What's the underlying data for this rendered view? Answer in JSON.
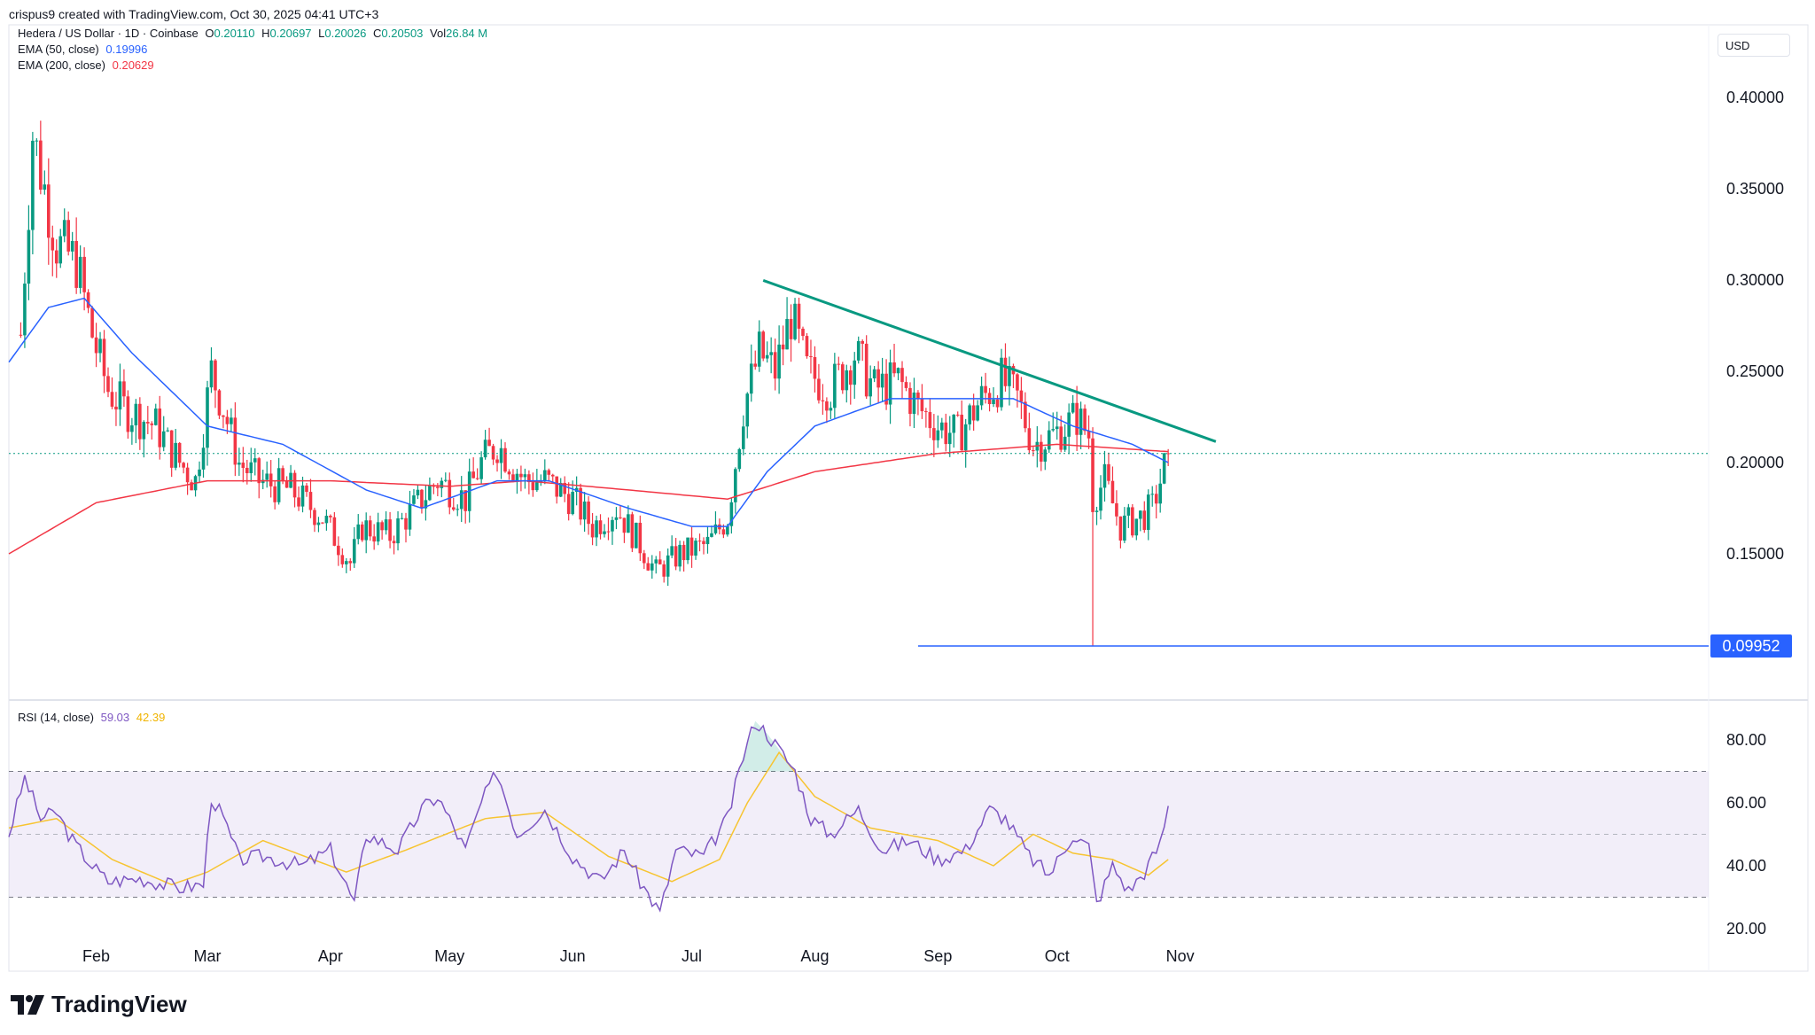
{
  "attribution": "crispus9 created with TradingView.com, Oct 30, 2025 04:41 UTC+3",
  "symbol": {
    "name": "Hedera / US Dollar · 1D · Coinbase",
    "o_label": "O",
    "o_value": "0.20110",
    "h_label": "H",
    "h_value": "0.20697",
    "l_label": "L",
    "l_value": "0.20026",
    "c_label": "C",
    "c_value": "0.20503",
    "vol_label": "Vol",
    "vol_value": "26.84 M"
  },
  "ema50": {
    "label": "EMA (50, close)",
    "value": "0.19996",
    "color": "#2962ff"
  },
  "ema200": {
    "label": "EMA (200, close)",
    "value": "0.20629",
    "color": "#f23645"
  },
  "rsi": {
    "label": "RSI (14, close)",
    "value": "59.03",
    "ma_value": "42.39",
    "color": "#7e57c2",
    "ma_color": "#f7c431"
  },
  "currency": "USD",
  "last_price_line": 0.205,
  "marked_low_label": "0.09952",
  "brand": "TradingView",
  "colors": {
    "up": "#089981",
    "down": "#f23645",
    "trendline": "#089981",
    "band": "#7e57c2"
  },
  "chart_data": [
    {
      "type": "candlestick",
      "title": "Hedera / US Dollar · 1D · Coinbase",
      "ylim": [
        0.07,
        0.45
      ],
      "y_ticks": [
        "0.40000",
        "0.35000",
        "0.30000",
        "0.25000",
        "0.20000",
        "0.15000"
      ],
      "x_ticks": [
        "Feb",
        "Mar",
        "Apr",
        "May",
        "Jun",
        "Jul",
        "Aug",
        "Sep",
        "Oct",
        "Nov"
      ],
      "price_anchors": [
        [
          "2025-01-13",
          0.27
        ],
        [
          "2025-01-16",
          0.38
        ],
        [
          "2025-01-19",
          0.35
        ],
        [
          "2025-01-22",
          0.32
        ],
        [
          "2025-01-27",
          0.31
        ],
        [
          "2025-01-31",
          0.27
        ],
        [
          "2025-02-04",
          0.24
        ],
        [
          "2025-02-08",
          0.23
        ],
        [
          "2025-02-16",
          0.22
        ],
        [
          "2025-02-22",
          0.2
        ],
        [
          "2025-02-26",
          0.19
        ],
        [
          "2025-03-02",
          0.25
        ],
        [
          "2025-03-05",
          0.23
        ],
        [
          "2025-03-09",
          0.2
        ],
        [
          "2025-03-14",
          0.19
        ],
        [
          "2025-03-22",
          0.185
        ],
        [
          "2025-03-30",
          0.17
        ],
        [
          "2025-04-06",
          0.145
        ],
        [
          "2025-04-09",
          0.165
        ],
        [
          "2025-04-16",
          0.16
        ],
        [
          "2025-04-24",
          0.18
        ],
        [
          "2025-04-28",
          0.19
        ],
        [
          "2025-05-05",
          0.18
        ],
        [
          "2025-05-09",
          0.2
        ],
        [
          "2025-05-13",
          0.21
        ],
        [
          "2025-05-20",
          0.19
        ],
        [
          "2025-05-25",
          0.19
        ],
        [
          "2025-06-01",
          0.18
        ],
        [
          "2025-06-06",
          0.165
        ],
        [
          "2025-06-12",
          0.175
        ],
        [
          "2025-06-18",
          0.155
        ],
        [
          "2025-06-22",
          0.14
        ],
        [
          "2025-06-28",
          0.15
        ],
        [
          "2025-07-05",
          0.155
        ],
        [
          "2025-07-10",
          0.17
        ],
        [
          "2025-07-14",
          0.23
        ],
        [
          "2025-07-18",
          0.26
        ],
        [
          "2025-07-22",
          0.25
        ],
        [
          "2025-07-26",
          0.28
        ],
        [
          "2025-07-30",
          0.25
        ],
        [
          "2025-08-05",
          0.24
        ],
        [
          "2025-08-11",
          0.26
        ],
        [
          "2025-08-16",
          0.24
        ],
        [
          "2025-08-22",
          0.245
        ],
        [
          "2025-08-27",
          0.23
        ],
        [
          "2025-09-01",
          0.22
        ],
        [
          "2025-09-06",
          0.215
        ],
        [
          "2025-09-12",
          0.235
        ],
        [
          "2025-09-17",
          0.245
        ],
        [
          "2025-09-21",
          0.235
        ],
        [
          "2025-09-25",
          0.21
        ],
        [
          "2025-09-30",
          0.215
        ],
        [
          "2025-10-06",
          0.225
        ],
        [
          "2025-10-09",
          0.215
        ],
        [
          "2025-10-10",
          0.18
        ],
        [
          "2025-10-13",
          0.19
        ],
        [
          "2025-10-17",
          0.165
        ],
        [
          "2025-10-22",
          0.17
        ],
        [
          "2025-10-25",
          0.175
        ],
        [
          "2025-10-29",
          0.205
        ]
      ],
      "ema50_anchors": [
        [
          "2025-01-10",
          0.255
        ],
        [
          "2025-01-20",
          0.285
        ],
        [
          "2025-01-29",
          0.29
        ],
        [
          "2025-02-10",
          0.26
        ],
        [
          "2025-03-01",
          0.22
        ],
        [
          "2025-03-20",
          0.21
        ],
        [
          "2025-04-10",
          0.185
        ],
        [
          "2025-04-24",
          0.175
        ],
        [
          "2025-05-13",
          0.19
        ],
        [
          "2025-05-26",
          0.19
        ],
        [
          "2025-06-15",
          0.175
        ],
        [
          "2025-07-01",
          0.165
        ],
        [
          "2025-07-10",
          0.165
        ],
        [
          "2025-07-20",
          0.195
        ],
        [
          "2025-08-01",
          0.22
        ],
        [
          "2025-08-20",
          0.235
        ],
        [
          "2025-09-10",
          0.235
        ],
        [
          "2025-09-20",
          0.235
        ],
        [
          "2025-10-05",
          0.22
        ],
        [
          "2025-10-20",
          0.21
        ],
        [
          "2025-10-29",
          0.2
        ]
      ],
      "ema200_anchors": [
        [
          "2025-01-10",
          0.15
        ],
        [
          "2025-02-01",
          0.178
        ],
        [
          "2025-03-01",
          0.19
        ],
        [
          "2025-04-01",
          0.19
        ],
        [
          "2025-05-01",
          0.187
        ],
        [
          "2025-05-20",
          0.19
        ],
        [
          "2025-06-15",
          0.185
        ],
        [
          "2025-07-10",
          0.18
        ],
        [
          "2025-08-01",
          0.195
        ],
        [
          "2025-09-01",
          0.205
        ],
        [
          "2025-10-01",
          0.21
        ],
        [
          "2025-10-29",
          0.206
        ]
      ],
      "trendline": {
        "start": [
          "2025-07-19",
          0.2998
        ],
        "end": [
          "2025-11-10",
          0.2115
        ]
      },
      "low_line": {
        "start": [
          "2025-08-27",
          0.0995
        ],
        "value": 0.0995
      },
      "spike_low": [
        "2025-10-10",
        0.0995
      ]
    },
    {
      "type": "line",
      "title": "RSI (14, close)",
      "ylim": [
        15,
        90
      ],
      "y_ticks": [
        "80.00",
        "60.00",
        "40.00",
        "20.00"
      ],
      "band": [
        30,
        70
      ],
      "midline": 50,
      "rsi_anchors": [
        [
          "2025-01-10",
          50
        ],
        [
          "2025-01-14",
          68
        ],
        [
          "2025-01-18",
          55
        ],
        [
          "2025-01-22",
          57
        ],
        [
          "2025-01-26",
          48
        ],
        [
          "2025-01-31",
          40
        ],
        [
          "2025-02-04",
          35
        ],
        [
          "2025-02-12",
          36
        ],
        [
          "2025-02-22",
          33
        ],
        [
          "2025-02-28",
          34
        ],
        [
          "2025-03-02",
          62
        ],
        [
          "2025-03-05",
          55
        ],
        [
          "2025-03-09",
          42
        ],
        [
          "2025-03-15",
          43
        ],
        [
          "2025-03-25",
          40
        ],
        [
          "2025-04-01",
          45
        ],
        [
          "2025-04-07",
          28
        ],
        [
          "2025-04-10",
          50
        ],
        [
          "2025-04-18",
          45
        ],
        [
          "2025-04-24",
          58
        ],
        [
          "2025-04-28",
          62
        ],
        [
          "2025-05-05",
          45
        ],
        [
          "2025-05-09",
          60
        ],
        [
          "2025-05-13",
          70
        ],
        [
          "2025-05-18",
          50
        ],
        [
          "2025-05-25",
          58
        ],
        [
          "2025-06-01",
          43
        ],
        [
          "2025-06-08",
          35
        ],
        [
          "2025-06-14",
          45
        ],
        [
          "2025-06-18",
          35
        ],
        [
          "2025-06-23",
          25
        ],
        [
          "2025-06-27",
          45
        ],
        [
          "2025-07-04",
          43
        ],
        [
          "2025-07-10",
          55
        ],
        [
          "2025-07-14",
          75
        ],
        [
          "2025-07-17",
          86
        ],
        [
          "2025-07-20",
          82
        ],
        [
          "2025-07-23",
          77
        ],
        [
          "2025-07-27",
          70
        ],
        [
          "2025-07-31",
          55
        ],
        [
          "2025-08-05",
          50
        ],
        [
          "2025-08-12",
          58
        ],
        [
          "2025-08-18",
          45
        ],
        [
          "2025-08-25",
          48
        ],
        [
          "2025-09-01",
          42
        ],
        [
          "2025-09-08",
          45
        ],
        [
          "2025-09-14",
          58
        ],
        [
          "2025-09-18",
          55
        ],
        [
          "2025-09-24",
          43
        ],
        [
          "2025-09-29",
          37
        ],
        [
          "2025-10-05",
          50
        ],
        [
          "2025-10-09",
          46
        ],
        [
          "2025-10-11",
          28
        ],
        [
          "2025-10-15",
          40
        ],
        [
          "2025-10-19",
          32
        ],
        [
          "2025-10-23",
          38
        ],
        [
          "2025-10-27",
          47
        ],
        [
          "2025-10-29",
          59
        ]
      ],
      "ma_anchors": [
        [
          "2025-01-10",
          52
        ],
        [
          "2025-01-22",
          55
        ],
        [
          "2025-02-05",
          42
        ],
        [
          "2025-02-20",
          34
        ],
        [
          "2025-03-01",
          38
        ],
        [
          "2025-03-15",
          48
        ],
        [
          "2025-04-05",
          38
        ],
        [
          "2025-04-20",
          45
        ],
        [
          "2025-05-10",
          55
        ],
        [
          "2025-05-25",
          57
        ],
        [
          "2025-06-10",
          43
        ],
        [
          "2025-06-26",
          35
        ],
        [
          "2025-07-08",
          42
        ],
        [
          "2025-07-15",
          60
        ],
        [
          "2025-07-23",
          76
        ],
        [
          "2025-08-01",
          62
        ],
        [
          "2025-08-15",
          52
        ],
        [
          "2025-09-01",
          48
        ],
        [
          "2025-09-15",
          40
        ],
        [
          "2025-09-25",
          50
        ],
        [
          "2025-10-05",
          44
        ],
        [
          "2025-10-15",
          42
        ],
        [
          "2025-10-24",
          37
        ],
        [
          "2025-10-29",
          42
        ]
      ]
    }
  ]
}
